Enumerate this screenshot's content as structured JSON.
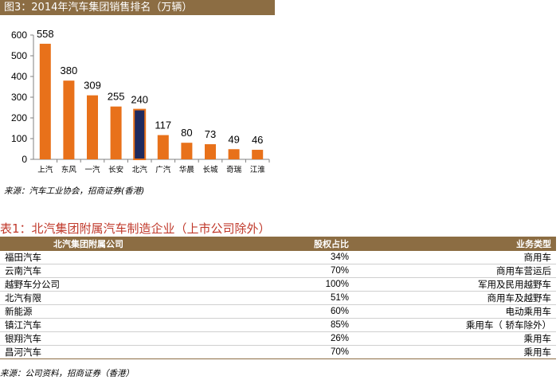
{
  "figure": {
    "caption": "图3：2014年汽车集团销售排名（万辆）",
    "source": "来源：汽车工业协会，招商证券(香港)"
  },
  "chart_data": {
    "type": "bar",
    "categories": [
      "上汽",
      "东风",
      "一汽",
      "长安",
      "北汽",
      "广汽",
      "华晨",
      "长城",
      "奇瑞",
      "江淮"
    ],
    "values": [
      558,
      380,
      309,
      255,
      240,
      117,
      80,
      73,
      49,
      46
    ],
    "ylim": [
      0,
      600
    ],
    "yticks": [
      0,
      100,
      200,
      300,
      400,
      500,
      600
    ],
    "colors": {
      "bar": "#e8711a",
      "highlight": "#1f2a5e",
      "highlight_border": "#e8711a"
    },
    "highlight_index": 4,
    "grid": false,
    "legend": "none"
  },
  "table": {
    "title": "表1：北汽集团附属汽车制造企业（上市公司除外）",
    "headers": [
      "北汽集团附属公司",
      "股权占比",
      "业务类型"
    ],
    "rows": [
      [
        "福田汽车",
        "34%",
        "商用车"
      ],
      [
        "云南汽车",
        "70%",
        "商用车营运后"
      ],
      [
        "越野车分公司",
        "100%",
        "军用及民用越野车"
      ],
      [
        "北汽有限",
        "51%",
        "商用车及越野车"
      ],
      [
        "新能源",
        "60%",
        "电动乘用车"
      ],
      [
        "镇江汽车",
        "85%",
        "乘用车（ 轿车除外）"
      ],
      [
        "银翔汽车",
        "26%",
        "乘用车"
      ],
      [
        "昌河汽车",
        "70%",
        "乘用车"
      ]
    ],
    "source": "来源：公司资料，招商证券（香港）"
  }
}
